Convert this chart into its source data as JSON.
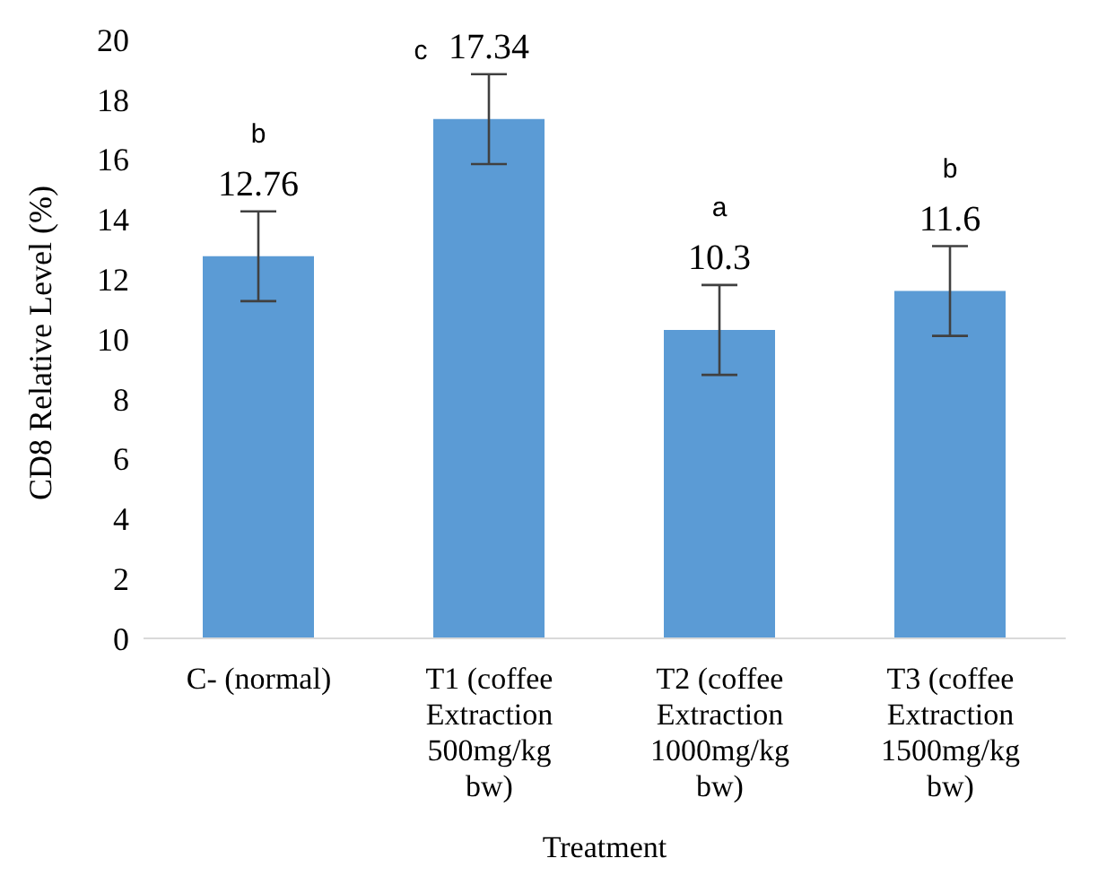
{
  "chart_data": {
    "type": "bar",
    "xlabel": "Treatment",
    "ylabel": "CD8 Relative Level (%)",
    "categories": [
      "C- (normal)",
      "T1 (coffee Extraction 500mg/kg bw)",
      "T2 (coffee Extraction 1000mg/kg bw)",
      "T3 (coffee Extraction 1500mg/kg bw)"
    ],
    "values": [
      12.76,
      17.34,
      10.3,
      11.6
    ],
    "errors": [
      1.5,
      1.5,
      1.5,
      1.5
    ],
    "color": "#5b9bd5",
    "ylim": [
      0,
      20
    ],
    "yticks": [
      0,
      2,
      4,
      6,
      8,
      10,
      12,
      14,
      16,
      18,
      20
    ],
    "data_labels": true,
    "grid": false,
    "legend": false,
    "annotations": [
      "b",
      "c",
      "a",
      "b"
    ]
  }
}
